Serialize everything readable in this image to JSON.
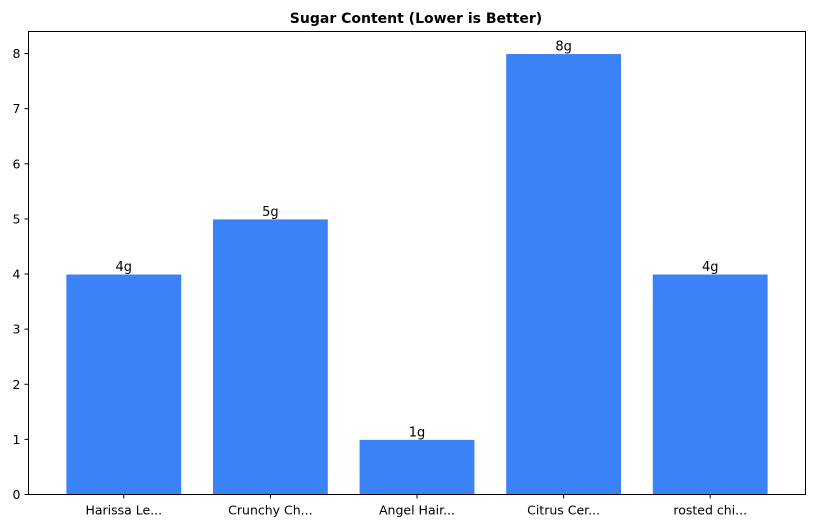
{
  "chart_data": {
    "type": "bar",
    "title": "Sugar Content (Lower is Better)",
    "xlabel": "",
    "ylabel": "",
    "categories": [
      "Harissa Le...",
      "Crunchy Ch...",
      "Angel Hair...",
      "Citrus Cer...",
      "rosted chi..."
    ],
    "values": [
      4,
      5,
      1,
      8,
      4
    ],
    "data_labels": [
      "4g",
      "5g",
      "1g",
      "8g",
      "4g"
    ],
    "ylim": [
      0,
      8.4
    ],
    "yticks": [
      0,
      1,
      2,
      3,
      4,
      5,
      6,
      7,
      8
    ],
    "grid": false,
    "legend": "none",
    "bar_color": "#3b82f6",
    "bar_edge_color": "#ffffff"
  }
}
